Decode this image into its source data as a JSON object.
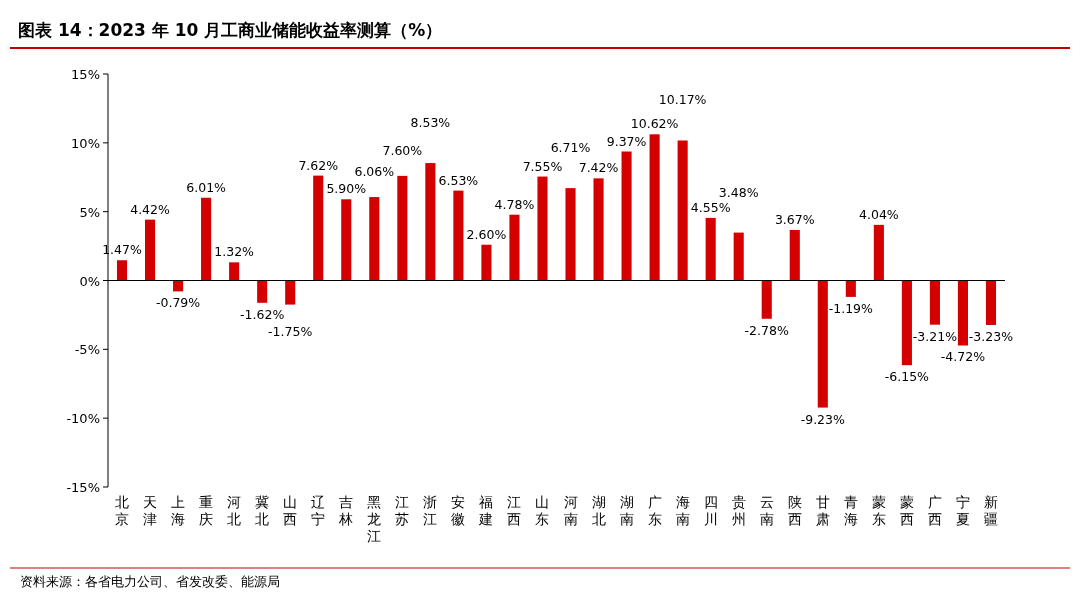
{
  "chart_data": {
    "type": "bar",
    "title": "图表 14：2023 年 10 月工商业储能收益率测算（%）",
    "categories": [
      "北京",
      "天津",
      "上海",
      "重庆",
      "河北",
      "冀北",
      "山西",
      "辽宁",
      "吉林",
      "黑龙江",
      "江苏",
      "浙江",
      "安徽",
      "福建",
      "江西",
      "山东",
      "河南",
      "湖北",
      "湖南",
      "广东",
      "海南",
      "四川",
      "贵州",
      "云南",
      "陕西",
      "甘肃",
      "青海",
      "蒙东",
      "蒙西",
      "广西",
      "宁夏",
      "新疆"
    ],
    "values": [
      1.47,
      4.42,
      -0.79,
      6.01,
      1.32,
      -1.62,
      -1.75,
      7.62,
      5.9,
      6.06,
      7.6,
      8.53,
      6.53,
      2.6,
      4.78,
      7.55,
      6.71,
      7.42,
      9.37,
      10.62,
      10.17,
      4.55,
      3.48,
      -2.78,
      3.67,
      -9.23,
      -1.19,
      4.04,
      -6.15,
      -3.21,
      -4.72,
      -3.23
    ],
    "value_labels": [
      "1.47%",
      "4.42%",
      "-0.79%",
      "6.01%",
      "1.32%",
      "-1.62%",
      "-1.75%",
      "7.62%",
      "5.90%",
      "6.06%",
      "7.60%",
      "8.53%",
      "6.53%",
      "2.60%",
      "4.78%",
      "7.55%",
      "6.71%",
      "7.42%",
      "9.37%",
      "10.62%",
      "10.17%",
      "4.55%",
      "3.48%",
      "-2.78%",
      "3.67%",
      "-9.23%",
      "-1.19%",
      "4.04%",
      "-6.15%",
      "-3.21%",
      "-4.72%",
      "-3.23%"
    ],
    "color": "#d40000",
    "ylim": [
      -15,
      15
    ],
    "yticks": [
      {
        "value": -15,
        "label": "-15%"
      },
      {
        "value": -10,
        "label": "-10%"
      },
      {
        "value": -5,
        "label": "-5%"
      },
      {
        "value": 0,
        "label": "0%"
      },
      {
        "value": 5,
        "label": "5%"
      },
      {
        "value": 10,
        "label": "10%"
      },
      {
        "value": 15,
        "label": "15%"
      }
    ],
    "annotations": [
      "资料来源：各省电力公司、省发改委、能源局"
    ]
  }
}
